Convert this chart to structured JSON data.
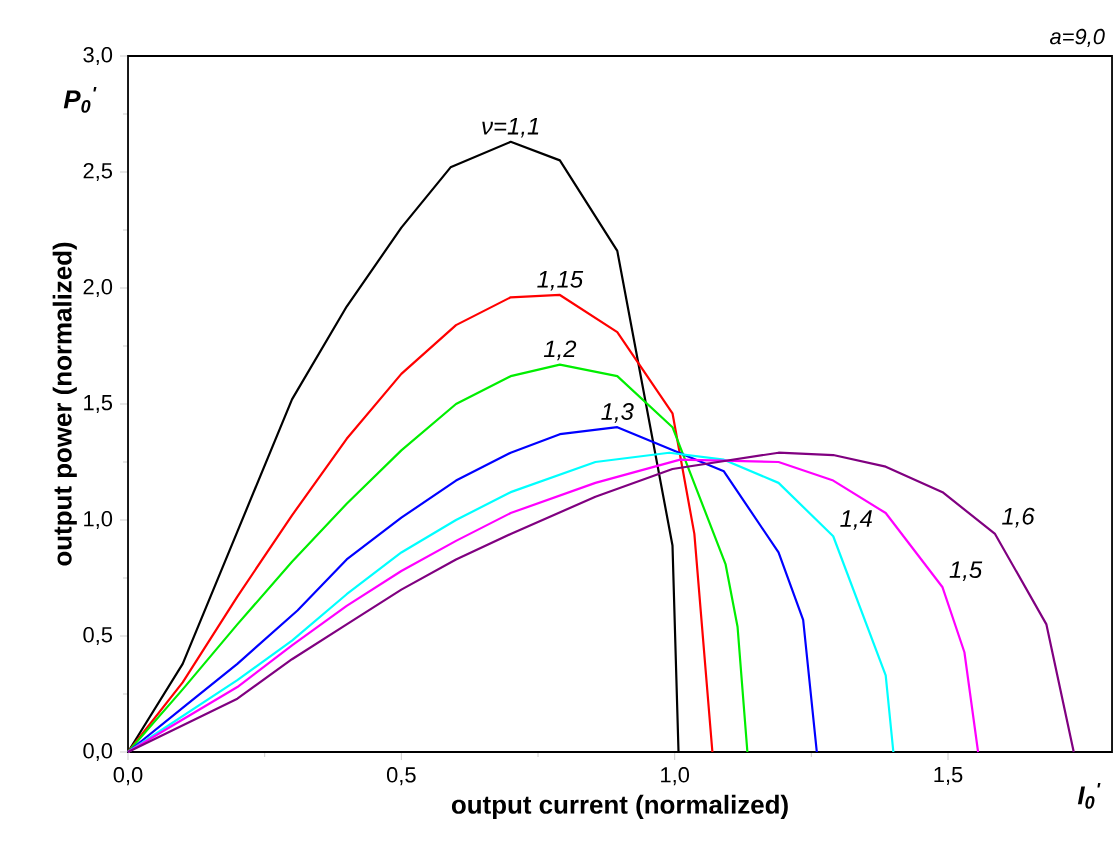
{
  "chart_data": {
    "type": "line",
    "xlabel": "output current (normalized)",
    "ylabel": "output power (normalized)",
    "annotations": [
      "a=9,0",
      "P$_{0}$$^{'}$",
      "I$_{0}$$^{'}$"
    ],
    "xlim": [
      0,
      1.8
    ],
    "ylim": [
      0,
      3.0
    ],
    "xticks": [
      {
        "value": 0,
        "label": "0,0"
      },
      {
        "value": 0.5,
        "label": "0,5"
      },
      {
        "value": 1.0,
        "label": "1,0"
      },
      {
        "value": 1.5,
        "label": "1,5"
      }
    ],
    "yticks": [
      {
        "value": 0,
        "label": "0,0"
      },
      {
        "value": 0.5,
        "label": "0,5"
      },
      {
        "value": 1.0,
        "label": "1,0"
      },
      {
        "value": 1.5,
        "label": "1,5"
      },
      {
        "value": 2.0,
        "label": "2,0"
      },
      {
        "value": 2.5,
        "label": "2,5"
      },
      {
        "value": 3.0,
        "label": "3,0"
      }
    ],
    "grid": false,
    "legend": false,
    "line_style": "solid",
    "marker": "none",
    "series": [
      {
        "name": "ν=1,1",
        "color": "#000000",
        "x": [
          0,
          0.1,
          0.2,
          0.3,
          0.4,
          0.5,
          0.59,
          0.7,
          0.79,
          0.895,
          0.996,
          1.007
        ],
        "values": [
          0,
          0.38,
          0.95,
          1.52,
          1.92,
          2.26,
          2.52,
          2.63,
          2.55,
          2.16,
          0.89,
          0
        ]
      },
      {
        "name": "1,15",
        "color": "#ff0000",
        "x": [
          0,
          0.1,
          0.2,
          0.3,
          0.4,
          0.5,
          0.6,
          0.7,
          0.79,
          0.895,
          0.996,
          1.036,
          1.069
        ],
        "values": [
          0,
          0.3,
          0.67,
          1.02,
          1.35,
          1.63,
          1.84,
          1.96,
          1.97,
          1.81,
          1.46,
          0.94,
          0
        ]
      },
      {
        "name": "1,2",
        "color": "#00ee00",
        "x": [
          0,
          0.1,
          0.2,
          0.3,
          0.4,
          0.5,
          0.6,
          0.7,
          0.79,
          0.895,
          0.996,
          1.093,
          1.115,
          1.133
        ],
        "values": [
          0,
          0.27,
          0.55,
          0.82,
          1.07,
          1.3,
          1.5,
          1.62,
          1.67,
          1.62,
          1.4,
          0.81,
          0.54,
          0
        ]
      },
      {
        "name": "1,3",
        "color": "#0000ff",
        "x": [
          0,
          0.105,
          0.2,
          0.31,
          0.4,
          0.5,
          0.6,
          0.7,
          0.79,
          0.895,
          1.09,
          1.19,
          1.235,
          1.26
        ],
        "values": [
          0,
          0.2,
          0.38,
          0.61,
          0.83,
          1.01,
          1.17,
          1.29,
          1.37,
          1.4,
          1.21,
          0.86,
          0.57,
          0
        ]
      },
      {
        "name": "1,4",
        "color": "#00ffff",
        "x": [
          0,
          0.2,
          0.3,
          0.4,
          0.5,
          0.6,
          0.7,
          0.855,
          0.99,
          1.09,
          1.19,
          1.29,
          1.386,
          1.4
        ],
        "values": [
          0,
          0.31,
          0.48,
          0.68,
          0.86,
          1.0,
          1.12,
          1.25,
          1.29,
          1.26,
          1.16,
          0.93,
          0.33,
          0
        ]
      },
      {
        "name": "1,5",
        "color": "#ff00ff",
        "x": [
          0,
          0.2,
          0.3,
          0.4,
          0.5,
          0.6,
          0.7,
          0.855,
          1.01,
          1.19,
          1.29,
          1.386,
          1.49,
          1.53,
          1.555
        ],
        "values": [
          0,
          0.28,
          0.46,
          0.63,
          0.78,
          0.91,
          1.03,
          1.16,
          1.26,
          1.25,
          1.17,
          1.03,
          0.71,
          0.43,
          0
        ]
      },
      {
        "name": "1,6",
        "color": "#800080",
        "x": [
          0,
          0.2,
          0.3,
          0.4,
          0.5,
          0.6,
          0.7,
          0.855,
          0.996,
          1.19,
          1.29,
          1.386,
          1.49,
          1.586,
          1.68,
          1.73
        ],
        "values": [
          0,
          0.23,
          0.4,
          0.55,
          0.7,
          0.83,
          0.94,
          1.1,
          1.22,
          1.29,
          1.28,
          1.23,
          1.12,
          0.94,
          0.55,
          0
        ]
      }
    ]
  }
}
